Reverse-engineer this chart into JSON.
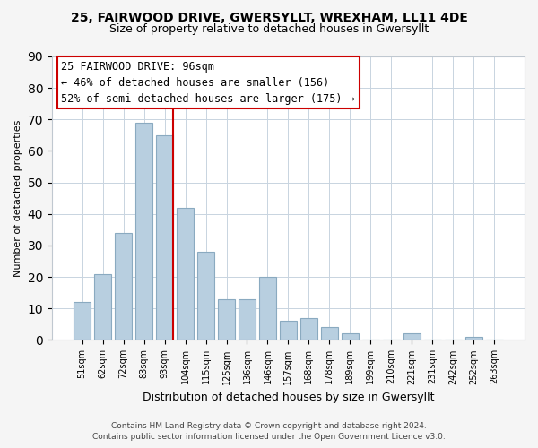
{
  "title1": "25, FAIRWOOD DRIVE, GWERSYLLT, WREXHAM, LL11 4DE",
  "title2": "Size of property relative to detached houses in Gwersyllt",
  "xlabel": "Distribution of detached houses by size in Gwersyllt",
  "ylabel": "Number of detached properties",
  "categories": [
    "51sqm",
    "62sqm",
    "72sqm",
    "83sqm",
    "93sqm",
    "104sqm",
    "115sqm",
    "125sqm",
    "136sqm",
    "146sqm",
    "157sqm",
    "168sqm",
    "178sqm",
    "189sqm",
    "199sqm",
    "210sqm",
    "221sqm",
    "231sqm",
    "242sqm",
    "252sqm",
    "263sqm"
  ],
  "values": [
    12,
    21,
    34,
    69,
    65,
    42,
    28,
    13,
    13,
    20,
    6,
    7,
    4,
    2,
    0,
    0,
    2,
    0,
    0,
    1,
    0
  ],
  "bar_color": "#b8cfe0",
  "bar_edge_color": "#8aaac0",
  "red_line_color": "#cc0000",
  "red_line_bar_index": 4,
  "ylim": [
    0,
    90
  ],
  "yticks": [
    0,
    10,
    20,
    30,
    40,
    50,
    60,
    70,
    80,
    90
  ],
  "annotation_title": "25 FAIRWOOD DRIVE: 96sqm",
  "annotation_line1": "← 46% of detached houses are smaller (156)",
  "annotation_line2": "52% of semi-detached houses are larger (175) →",
  "footer1": "Contains HM Land Registry data © Crown copyright and database right 2024.",
  "footer2": "Contains public sector information licensed under the Open Government Licence v3.0.",
  "bg_color": "#f5f5f5",
  "plot_bg_color": "#ffffff",
  "grid_color": "#c8d4e0",
  "title1_fontsize": 10,
  "title2_fontsize": 9,
  "ylabel_fontsize": 8,
  "xlabel_fontsize": 9,
  "annotation_fontsize": 8.5,
  "footer_fontsize": 6.5
}
